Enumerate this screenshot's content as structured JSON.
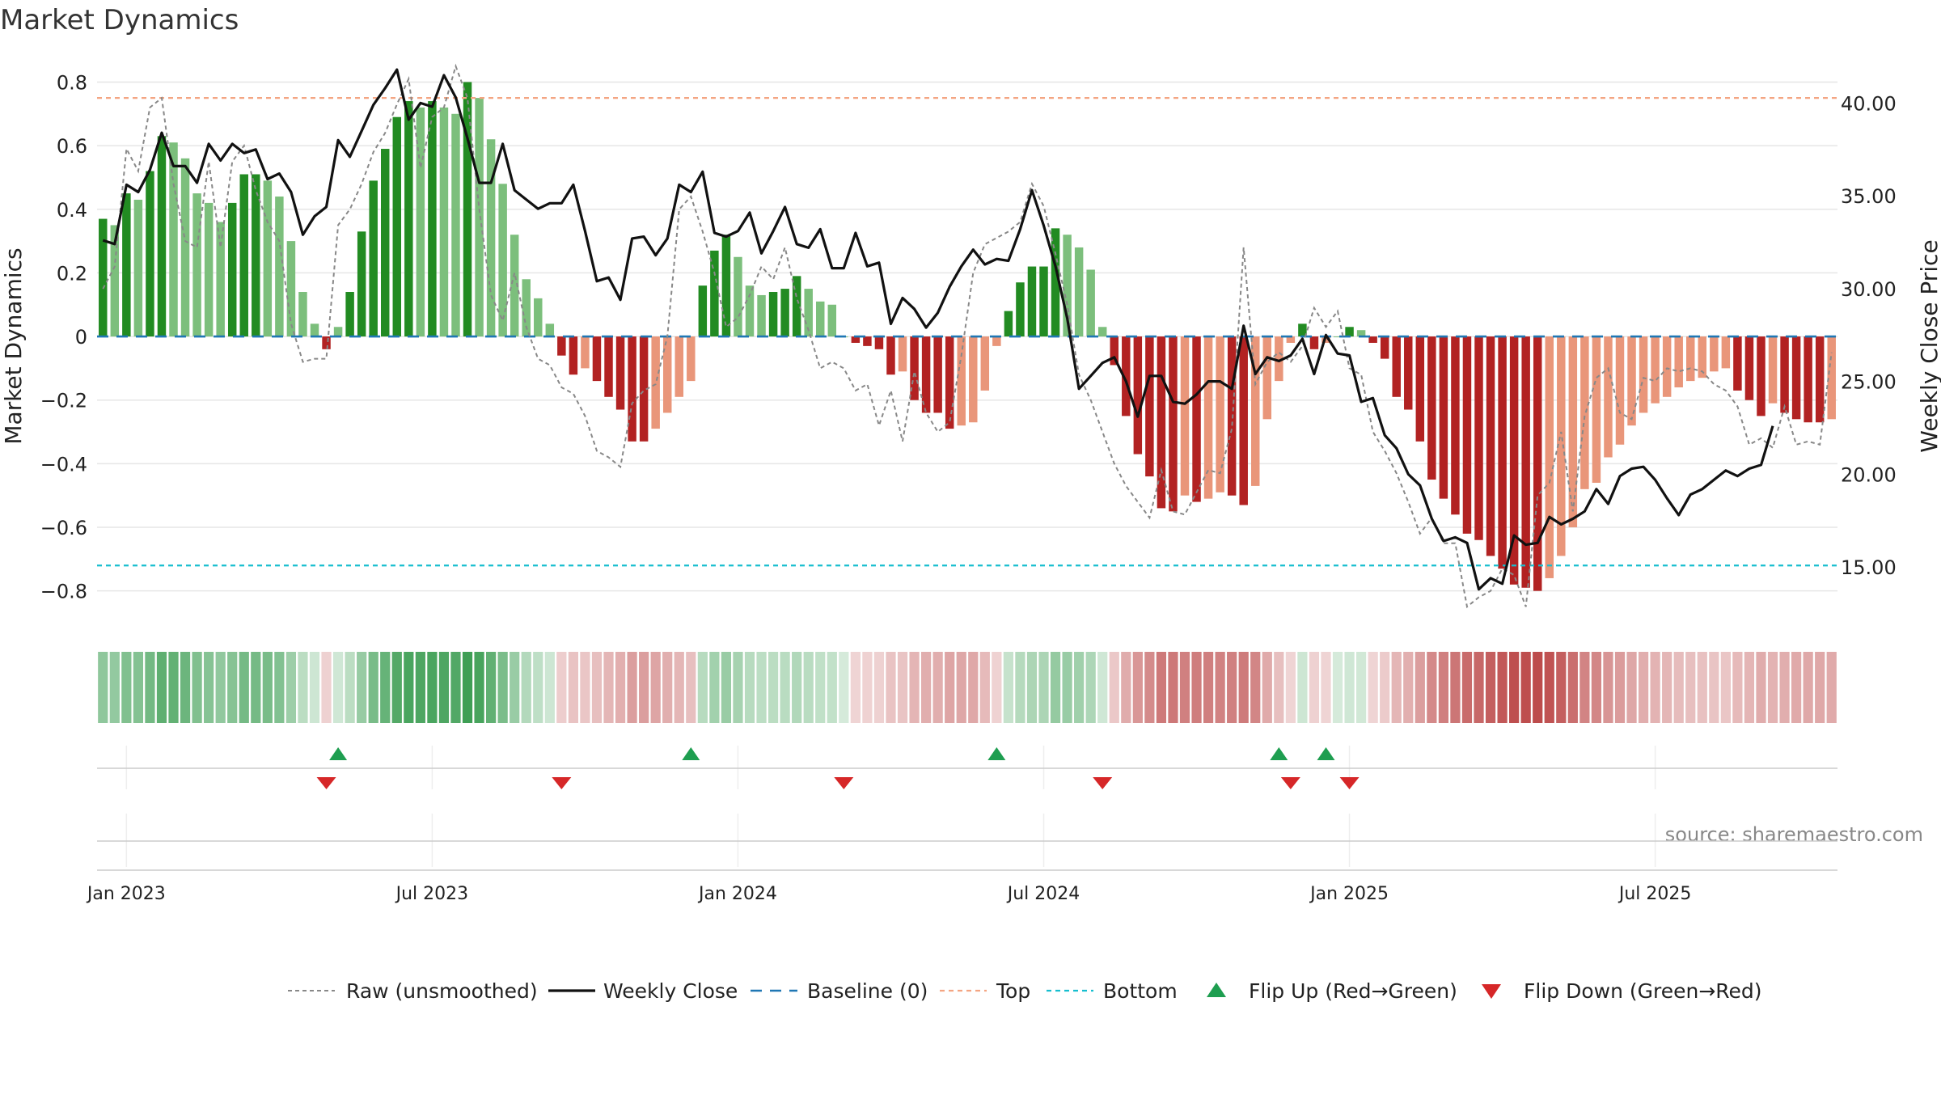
{
  "chart_data": {
    "type": "bar",
    "title": "Market Dynamics",
    "ylabel_left": "Market Dynamics",
    "ylabel_right": "Weekly Close Price",
    "ylim_left": [
      -0.9,
      0.88
    ],
    "ylim_right": [
      12.0,
      42.5
    ],
    "yticks_left": [
      {
        "v": 0.8,
        "label": "0.8"
      },
      {
        "v": 0.6,
        "label": "0.6"
      },
      {
        "v": 0.4,
        "label": "0.4"
      },
      {
        "v": 0.2,
        "label": "0.2"
      },
      {
        "v": 0.0,
        "label": "0"
      },
      {
        "v": -0.2,
        "label": "−0.2"
      },
      {
        "v": -0.4,
        "label": "−0.4"
      },
      {
        "v": -0.6,
        "label": "−0.6"
      },
      {
        "v": -0.8,
        "label": "−0.8"
      }
    ],
    "yticks_right": [
      {
        "v": 40,
        "label": "40.00"
      },
      {
        "v": 35,
        "label": "35.00"
      },
      {
        "v": 30,
        "label": "30.00"
      },
      {
        "v": 25,
        "label": "25.00"
      },
      {
        "v": 20,
        "label": "20.00"
      },
      {
        "v": 15,
        "label": "15.00"
      }
    ],
    "xticks": [
      {
        "week": 2,
        "label": "Jan 2023"
      },
      {
        "week": 28,
        "label": "Jul 2023"
      },
      {
        "week": 54,
        "label": "Jan 2024"
      },
      {
        "week": 80,
        "label": "Jul 2024"
      },
      {
        "week": 106,
        "label": "Jan 2025"
      },
      {
        "week": 132,
        "label": "Jul 2025"
      }
    ],
    "x_start": "2022-12-19",
    "x_step_days": 7,
    "top_level": 0.75,
    "bottom_level": -0.72,
    "baseline": 0,
    "grid": true,
    "legend_position": "bottom",
    "legend": [
      {
        "key": "raw",
        "label": "Raw (unsmoothed)"
      },
      {
        "key": "close",
        "label": "Weekly Close"
      },
      {
        "key": "baseline",
        "label": "Baseline (0)"
      },
      {
        "key": "top",
        "label": "Top"
      },
      {
        "key": "bottom",
        "label": "Bottom"
      },
      {
        "key": "flip_up",
        "label": "Flip Up (Red→Green)"
      },
      {
        "key": "flip_down",
        "label": "Flip Down (Green→Red)"
      }
    ],
    "series": [
      {
        "name": "Market Dynamics",
        "values": [
          0.37,
          0.35,
          0.45,
          0.43,
          0.52,
          0.63,
          0.61,
          0.56,
          0.45,
          0.42,
          0.36,
          0.42,
          0.51,
          0.51,
          0.49,
          0.44,
          0.3,
          0.14,
          0.04,
          -0.04,
          0.03,
          0.14,
          0.33,
          0.49,
          0.59,
          0.69,
          0.74,
          0.72,
          0.74,
          0.72,
          0.7,
          0.8,
          0.75,
          0.62,
          0.48,
          0.32,
          0.18,
          0.12,
          0.04,
          -0.06,
          -0.12,
          -0.1,
          -0.14,
          -0.19,
          -0.23,
          -0.33,
          -0.33,
          -0.29,
          -0.24,
          -0.19,
          -0.14,
          0.16,
          0.27,
          0.32,
          0.25,
          0.16,
          0.13,
          0.14,
          0.15,
          0.19,
          0.15,
          0.11,
          0.1,
          0.0,
          -0.02,
          -0.03,
          -0.04,
          -0.12,
          -0.11,
          -0.2,
          -0.24,
          -0.24,
          -0.29,
          -0.28,
          -0.27,
          -0.17,
          -0.03,
          0.08,
          0.17,
          0.22,
          0.22,
          0.34,
          0.32,
          0.28,
          0.21,
          0.03,
          -0.09,
          -0.25,
          -0.37,
          -0.44,
          -0.54,
          -0.55,
          -0.5,
          -0.52,
          -0.51,
          -0.49,
          -0.5,
          -0.53,
          -0.47,
          -0.26,
          -0.14,
          -0.02,
          0.04,
          -0.04,
          -0.02,
          0.0,
          0.03,
          0.02,
          -0.02,
          -0.07,
          -0.19,
          -0.23,
          -0.33,
          -0.45,
          -0.51,
          -0.56,
          -0.62,
          -0.64,
          -0.69,
          -0.73,
          -0.78,
          -0.79,
          -0.8,
          -0.76,
          -0.69,
          -0.6,
          -0.48,
          -0.46,
          -0.38,
          -0.34,
          -0.28,
          -0.24,
          -0.21,
          -0.19,
          -0.16,
          -0.14,
          -0.13,
          -0.11,
          -0.1,
          -0.17,
          -0.2,
          -0.25,
          -0.21,
          -0.24,
          -0.26,
          -0.27,
          -0.27,
          -0.26
        ]
      },
      {
        "name": "Raw (unsmoothed)",
        "values": [
          0.15,
          0.22,
          0.59,
          0.52,
          0.72,
          0.75,
          0.48,
          0.3,
          0.28,
          0.55,
          0.28,
          0.55,
          0.6,
          0.46,
          0.36,
          0.3,
          0.04,
          -0.08,
          -0.07,
          -0.07,
          0.35,
          0.4,
          0.48,
          0.58,
          0.64,
          0.73,
          0.81,
          0.53,
          0.69,
          0.72,
          0.85,
          0.75,
          0.4,
          0.13,
          0.05,
          0.2,
          0.03,
          -0.07,
          -0.09,
          -0.16,
          -0.18,
          -0.25,
          -0.36,
          -0.38,
          -0.41,
          -0.21,
          -0.17,
          -0.15,
          0.0,
          0.4,
          0.44,
          0.33,
          0.2,
          0.03,
          0.06,
          0.13,
          0.22,
          0.18,
          0.28,
          0.12,
          0.02,
          -0.1,
          -0.08,
          -0.1,
          -0.17,
          -0.15,
          -0.28,
          -0.17,
          -0.33,
          -0.11,
          -0.24,
          -0.3,
          -0.27,
          -0.06,
          0.2,
          0.29,
          0.31,
          0.33,
          0.36,
          0.48,
          0.41,
          0.26,
          0.1,
          -0.12,
          -0.2,
          -0.3,
          -0.4,
          -0.47,
          -0.52,
          -0.57,
          -0.42,
          -0.55,
          -0.56,
          -0.49,
          -0.42,
          -0.43,
          -0.29,
          0.28,
          -0.15,
          -0.08,
          -0.05,
          -0.08,
          -0.03,
          0.09,
          0.03,
          0.08,
          -0.1,
          -0.12,
          -0.3,
          -0.36,
          -0.43,
          -0.52,
          -0.62,
          -0.57,
          -0.65,
          -0.65,
          -0.85,
          -0.82,
          -0.8,
          -0.73,
          -0.75,
          -0.85,
          -0.5,
          -0.46,
          -0.3,
          -0.55,
          -0.25,
          -0.13,
          -0.1,
          -0.24,
          -0.26,
          -0.13,
          -0.14,
          -0.1,
          -0.11,
          -0.1,
          -0.11,
          -0.15,
          -0.17,
          -0.22,
          -0.34,
          -0.32,
          -0.35,
          -0.22,
          -0.34,
          -0.33,
          -0.34,
          -0.05
        ]
      },
      {
        "name": "Weekly Close",
        "values": [
          32.6,
          32.4,
          35.6,
          35.2,
          36.4,
          38.4,
          36.6,
          36.6,
          35.7,
          37.8,
          36.9,
          37.8,
          37.3,
          37.5,
          35.9,
          36.2,
          35.2,
          32.9,
          33.9,
          34.4,
          38.0,
          37.1,
          38.5,
          39.9,
          40.8,
          41.8,
          39.1,
          40.0,
          39.8,
          41.5,
          40.3,
          38.1,
          35.7,
          35.7,
          37.8,
          35.3,
          34.8,
          34.3,
          34.6,
          34.6,
          35.6,
          33.1,
          30.4,
          30.6,
          29.4,
          32.7,
          32.8,
          31.8,
          32.7,
          35.6,
          35.2,
          36.3,
          33.0,
          32.8,
          33.1,
          34.1,
          31.9,
          33.1,
          34.4,
          32.4,
          32.2,
          33.2,
          31.1,
          31.1,
          33.0,
          31.2,
          31.4,
          28.1,
          29.5,
          28.9,
          27.9,
          28.7,
          30.1,
          31.2,
          32.1,
          31.3,
          31.6,
          31.5,
          33.2,
          35.3,
          33.4,
          31.2,
          28.4,
          24.6,
          25.3,
          26.0,
          26.3,
          25.0,
          23.1,
          25.3,
          25.3,
          23.9,
          23.8,
          24.3,
          25.0,
          25.0,
          24.6,
          28.0,
          25.4,
          26.3,
          26.1,
          26.4,
          27.3,
          25.4,
          27.5,
          26.5,
          26.4,
          23.9,
          24.1,
          22.1,
          21.4,
          20.0,
          19.4,
          17.6,
          16.4,
          16.6,
          16.3,
          13.8,
          14.4,
          14.1,
          16.7,
          16.2,
          16.3,
          17.7,
          17.3,
          17.6,
          18.0,
          19.2,
          18.4,
          19.9,
          20.3,
          20.4,
          19.7,
          18.7,
          17.8,
          18.9,
          19.2,
          19.7,
          20.2,
          19.9,
          20.3,
          20.5,
          22.6
        ]
      }
    ],
    "flips_up_weeks": [
      20,
      50,
      76,
      100,
      104
    ],
    "flips_down_weeks": [
      19,
      39,
      63,
      85,
      101,
      106
    ],
    "annotation": "source: sharemaestro.com"
  },
  "colors": {
    "strong_green": "#228B22",
    "light_green": "#7CBF7C",
    "strong_red": "#B22222",
    "light_red": "#E9967A",
    "raw_line": "#888888",
    "close_line": "#111111",
    "baseline": "#1F77B4",
    "top": "#F4A582",
    "bottom": "#17BECF",
    "flip_up": "#1E9E50",
    "flip_down": "#D62728",
    "grid": "#e6e6e6",
    "axis_text": "#222222",
    "source_text": "#888888"
  }
}
